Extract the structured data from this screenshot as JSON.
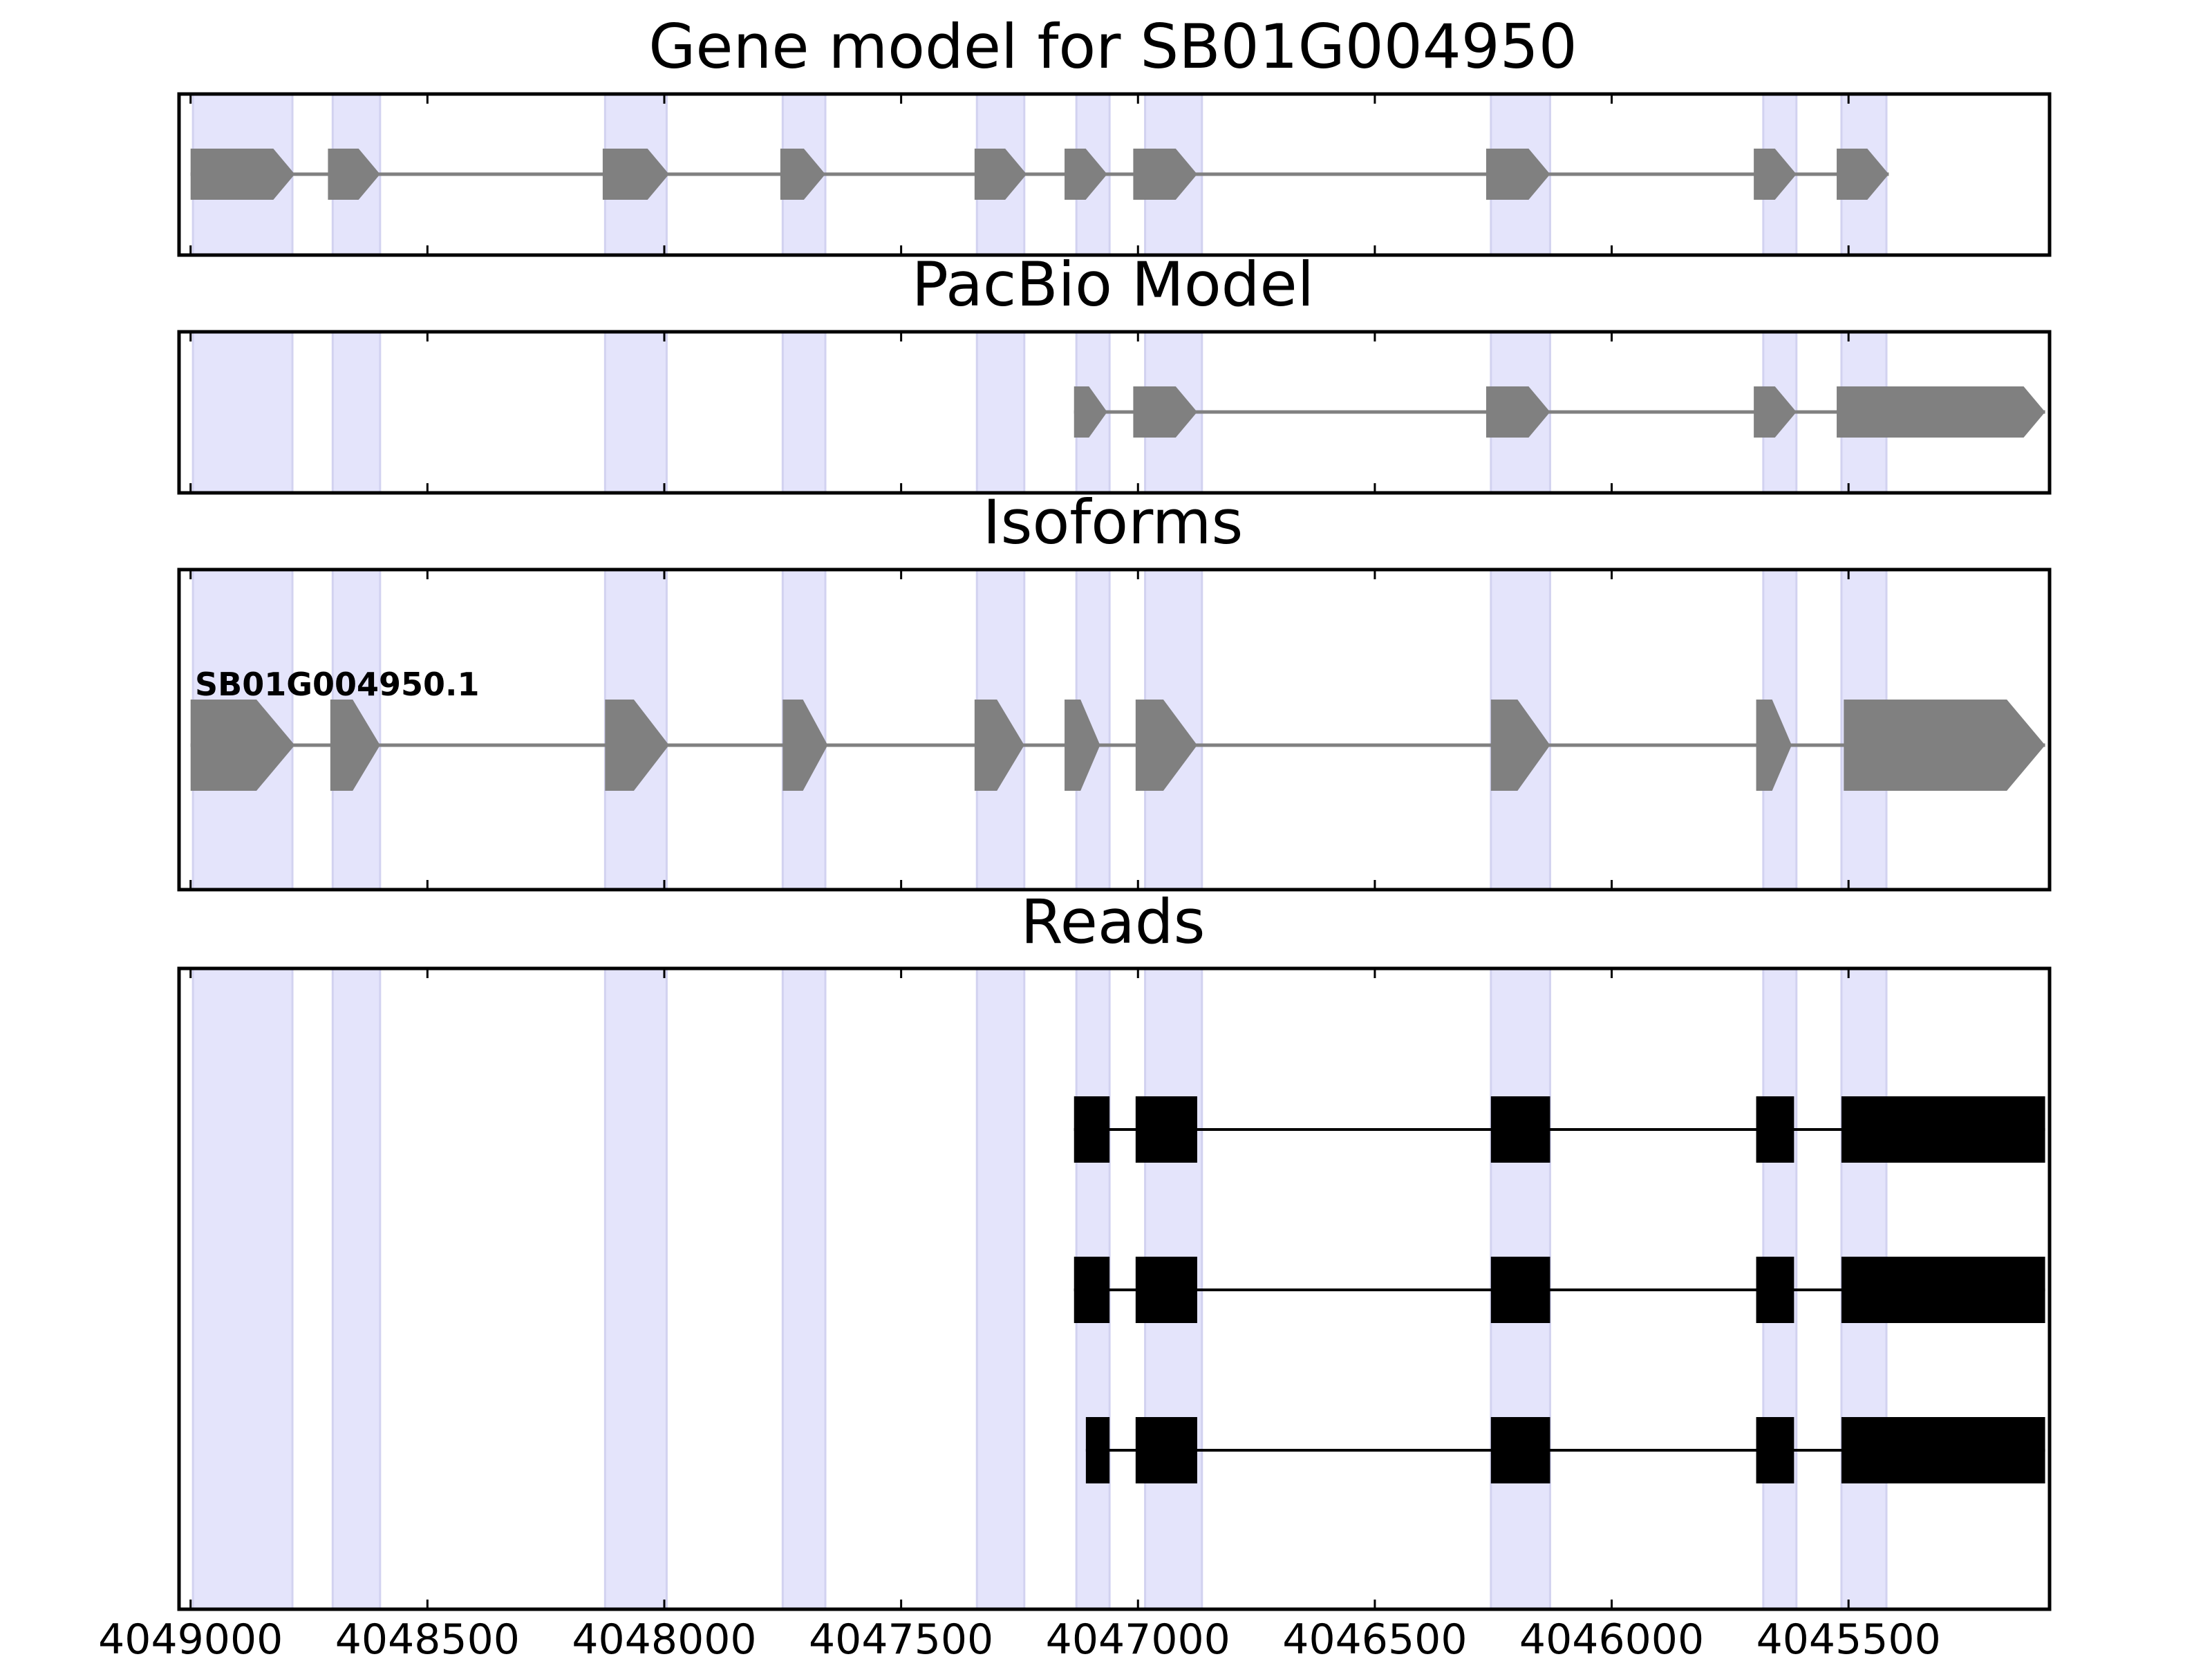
{
  "chart_data": {
    "type": "gene-structure",
    "xlim": [
      4049020,
      4045080
    ],
    "x_reversed": true,
    "x_ticks": [
      4049000,
      4048500,
      4048000,
      4047500,
      4047000,
      4046500,
      4046000,
      4045500
    ],
    "x_tick_labels": [
      "4049000",
      "4048500",
      "4048000",
      "4047500",
      "4047000",
      "4046500",
      "4046000",
      "4045500"
    ],
    "grid": false,
    "highlight_color": "#e4e4fb",
    "exon_regions": [
      [
        4048995,
        4048785
      ],
      [
        4048700,
        4048600
      ],
      [
        4048125,
        4047995
      ],
      [
        4047750,
        4047660
      ],
      [
        4047340,
        4047240
      ],
      [
        4047130,
        4047060
      ],
      [
        4046985,
        4046865
      ],
      [
        4046255,
        4046130
      ],
      [
        4045680,
        4045610
      ],
      [
        4045515,
        4045420
      ]
    ],
    "panels": [
      {
        "title": "Gene model for SB01G004950",
        "color": "#808080",
        "tracks": [
          {
            "label": "",
            "exons": [
              [
                4049000,
                4048780
              ],
              [
                4048710,
                4048600
              ],
              [
                4048130,
                4047990
              ],
              [
                4047755,
                4047660
              ],
              [
                4047345,
                4047235
              ],
              [
                4047155,
                4047065
              ],
              [
                4047010,
                4046875
              ],
              [
                4046265,
                4046130
              ],
              [
                4045700,
                4045610
              ],
              [
                4045525,
                4045415
              ]
            ]
          }
        ]
      },
      {
        "title": "PacBio Model",
        "color": "#808080",
        "tracks": [
          {
            "label": "",
            "exons": [
              [
                4047135,
                4047065
              ],
              [
                4047010,
                4046875
              ],
              [
                4046265,
                4046130
              ],
              [
                4045700,
                4045610
              ],
              [
                4045525,
                4045085
              ]
            ]
          }
        ]
      },
      {
        "title": "Isoforms",
        "color": "#808080",
        "tracks": [
          {
            "label": "SB01G004950.1",
            "exons": [
              [
                4049000,
                4048780
              ],
              [
                4048705,
                4048600
              ],
              [
                4048125,
                4047990
              ],
              [
                4047750,
                4047655
              ],
              [
                4047345,
                4047240
              ],
              [
                4047155,
                4047080
              ],
              [
                4047005,
                4046875
              ],
              [
                4046255,
                4046130
              ],
              [
                4045695,
                4045620
              ],
              [
                4045510,
                4045085
              ]
            ]
          }
        ]
      },
      {
        "title": "Reads",
        "color": "#000000",
        "tracks": [
          {
            "label": "",
            "exons": [
              [
                4047135,
                4047060
              ],
              [
                4047005,
                4046875
              ],
              [
                4046255,
                4046130
              ],
              [
                4045695,
                4045615
              ],
              [
                4045515,
                4045085
              ]
            ]
          },
          {
            "label": "",
            "exons": [
              [
                4047135,
                4047060
              ],
              [
                4047005,
                4046875
              ],
              [
                4046255,
                4046130
              ],
              [
                4045695,
                4045615
              ],
              [
                4045515,
                4045085
              ]
            ]
          },
          {
            "label": "",
            "exons": [
              [
                4047110,
                4047060
              ],
              [
                4047005,
                4046875
              ],
              [
                4046255,
                4046130
              ],
              [
                4045695,
                4045615
              ],
              [
                4045515,
                4045085
              ]
            ]
          }
        ]
      }
    ]
  }
}
